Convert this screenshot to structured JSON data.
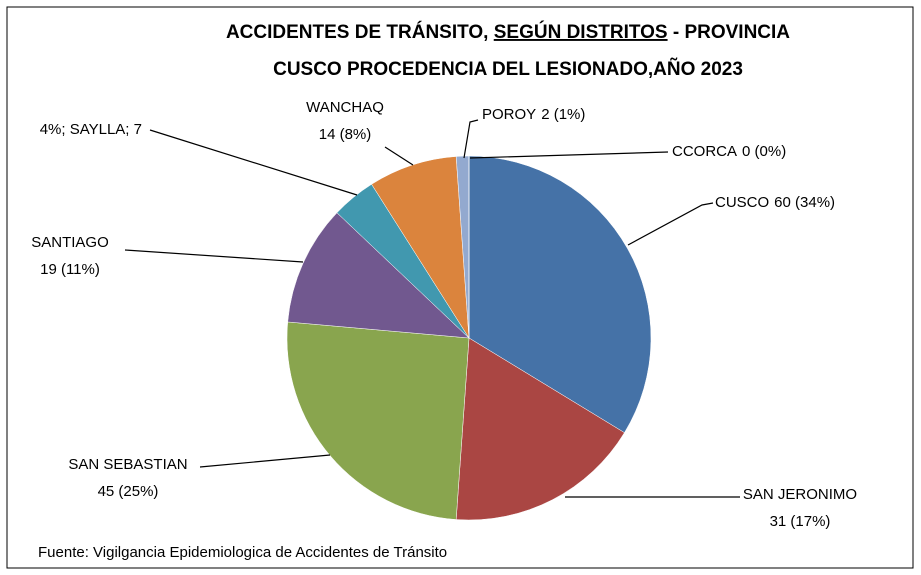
{
  "chart_data": {
    "type": "pie",
    "title": [
      "ACCIDENTES DE TRÁNSITO, ",
      "SEGÚN DISTRITOS",
      " - PROVINCIA",
      "CUSCO PROCEDENCIA  DEL LESIONADO,AÑO 2023"
    ],
    "categories": [
      "CUSCO",
      "SAN JERONIMO",
      "SAN SEBASTIAN",
      "SANTIAGO",
      "SAYLLA",
      "WANCHAQ",
      "POROY",
      "CCORCA"
    ],
    "values": [
      60,
      31,
      45,
      19,
      7,
      14,
      2,
      0
    ],
    "value_labels": [
      "60 (34%)",
      "31 (17%)",
      "45 (25%)",
      "19 (11%)",
      "4%; SAYLLA; 7",
      "14 (8%)",
      "2 (1%)",
      "0 (0%)"
    ],
    "colors": [
      "#4572a7",
      "#aa4643",
      "#89a54e",
      "#71588f",
      "#4198af",
      "#db843d",
      "#93a9cf",
      "#b9cd96"
    ],
    "source": "Fuente: Vigilgancia Epidemiologica de Accidentes de Tránsito"
  }
}
